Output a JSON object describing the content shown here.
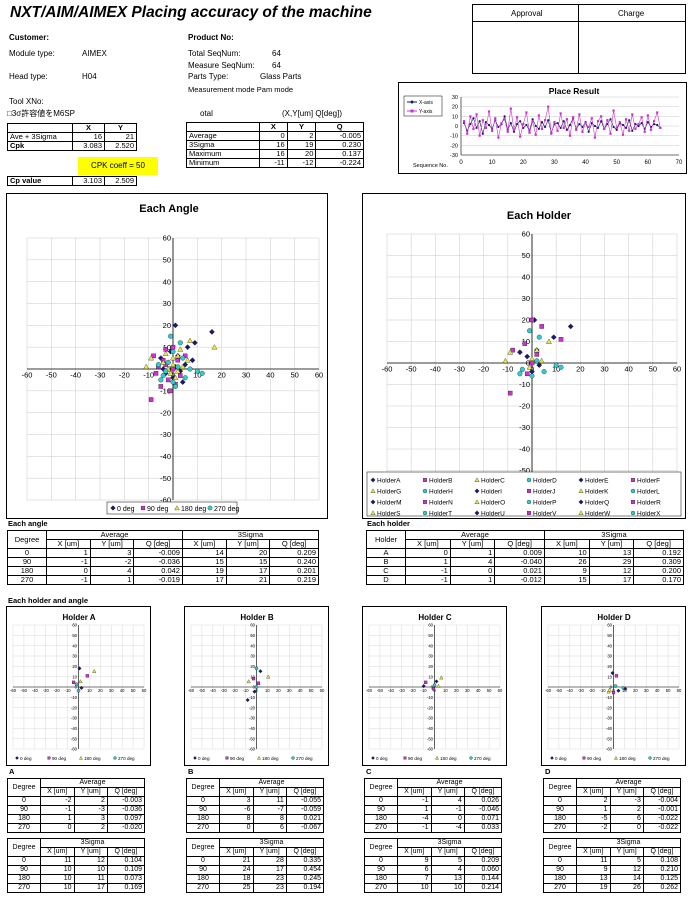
{
  "title": "NXT/AIM/AIMEX Placing accuracy of the machine",
  "approval": {
    "approval_label": "Approval",
    "charge_label": "Charge"
  },
  "info": {
    "customer_label": "Customer:",
    "product_label": "Product No:",
    "module_type_label": "Module type:",
    "module_type": "AIMEX",
    "head_type_label": "Head type:",
    "head_type": "H04",
    "total_seq_label": "Total SeqNum:",
    "total_seq": "64",
    "measure_seq_label": "Measure SeqNum:",
    "measure_seq": "64",
    "parts_type_label": "Parts Type:",
    "parts_type": "Glass Parts",
    "measure_mode": "Measurement mode Pam mode",
    "tool_label": "Tool XNo:",
    "sigma_note": "□3σ許容値をM6SP"
  },
  "cpk_table": {
    "headers": [
      "",
      "X",
      "Y"
    ],
    "rows": [
      [
        "Ave + 3Sigma",
        "16",
        "21"
      ],
      [
        "Cpk",
        "3.083",
        "2.520"
      ]
    ],
    "coeff": "CPK coeff = 50",
    "cp_label": "Cp value",
    "cp_x": "3.103",
    "cp_y": "2.509"
  },
  "total_table": {
    "label": "otal",
    "unit_label": "(X,Y[um] Q[deg])",
    "headers": [
      "",
      "X",
      "Y",
      "Q"
    ],
    "rows": [
      [
        "Average",
        "0",
        "2",
        "-0.005"
      ],
      [
        "3Sigma",
        "16",
        "19",
        "0.230"
      ],
      [
        "Maximum",
        "16",
        "20",
        "0.137"
      ],
      [
        "Minimum",
        "-11",
        "-12",
        "-0.224"
      ]
    ]
  },
  "place_result": {
    "title": "Place Result",
    "legend": [
      "X-axis",
      "Y-axis"
    ],
    "xlabel": "Sequence No.",
    "xticks": [
      "0",
      "10",
      "20",
      "30",
      "40",
      "50",
      "60",
      "70"
    ],
    "yticks": [
      "30",
      "20",
      "10",
      "0",
      "-10",
      "-20",
      "-30"
    ]
  },
  "chart_data": [
    {
      "type": "line",
      "title": "Place Result",
      "xlabel": "Sequence No.",
      "ylabel": "",
      "xlim": [
        0,
        70
      ],
      "ylim": [
        -30,
        30
      ],
      "series": [
        {
          "name": "X-axis",
          "values": [
            3,
            -5,
            2,
            8,
            -2,
            5,
            -8,
            4,
            1,
            -3,
            6,
            -1,
            2,
            10,
            -4,
            3,
            -6,
            2,
            5,
            -2,
            1,
            -5,
            7,
            0,
            -3,
            4,
            -1,
            6,
            -7,
            2,
            3,
            -2,
            5,
            -4,
            1,
            8,
            -3,
            2,
            -1,
            4,
            -6,
            3,
            0,
            -2,
            5,
            -3,
            2,
            7,
            -1,
            -4,
            3,
            1,
            -2,
            6,
            -5,
            2,
            0,
            3,
            -3,
            4,
            -1,
            2,
            1,
            -2
          ]
        },
        {
          "name": "Y-axis",
          "values": [
            5,
            -8,
            10,
            -3,
            12,
            -10,
            6,
            -2,
            15,
            -5,
            8,
            -12,
            3,
            7,
            -6,
            18,
            -4,
            9,
            -11,
            2,
            14,
            -7,
            5,
            -9,
            11,
            -3,
            6,
            20,
            -8,
            4,
            -5,
            13,
            -2,
            7,
            -10,
            9,
            -4,
            12,
            -6,
            3,
            -1,
            8,
            -12,
            5,
            10,
            -3,
            6,
            -8,
            16,
            -2,
            4,
            -9,
            7,
            -5,
            12,
            -3,
            2,
            9,
            -6,
            11,
            -4,
            5,
            14,
            -2
          ]
        }
      ]
    },
    {
      "type": "scatter",
      "title": "Each Angle",
      "xlim": [
        -60,
        60
      ],
      "ylim": [
        -60,
        60
      ],
      "legend": [
        "0 deg",
        "90 deg",
        "180 deg",
        "270 deg"
      ],
      "series": [
        {
          "name": "0 deg",
          "points": [
            [
              1,
              20
            ],
            [
              9,
              12
            ],
            [
              16,
              17
            ],
            [
              -2,
              3
            ],
            [
              3,
              -1
            ],
            [
              -5,
              5
            ],
            [
              2,
              6
            ],
            [
              0,
              -4
            ],
            [
              5,
              2
            ],
            [
              -3,
              -2
            ],
            [
              8,
              4
            ],
            [
              1,
              1
            ],
            [
              -1,
              8
            ],
            [
              4,
              -6
            ],
            [
              6,
              10
            ],
            [
              -4,
              0
            ]
          ]
        },
        {
          "name": "90 deg",
          "points": [
            [
              -9,
              -14
            ],
            [
              -3,
              9
            ],
            [
              -8,
              6
            ],
            [
              0,
              0
            ],
            [
              -2,
              -5
            ],
            [
              2,
              4
            ],
            [
              -6,
              1
            ],
            [
              -1,
              -10
            ],
            [
              3,
              -3
            ],
            [
              -4,
              4
            ],
            [
              0,
              10
            ],
            [
              -7,
              -2
            ],
            [
              1,
              -7
            ],
            [
              -3,
              2
            ],
            [
              5,
              6
            ],
            [
              -5,
              -8
            ]
          ]
        },
        {
          "name": "180 deg",
          "points": [
            [
              -11,
              1
            ],
            [
              -9,
              5
            ],
            [
              17,
              10
            ],
            [
              7,
              13
            ],
            [
              0,
              2
            ],
            [
              2,
              6
            ],
            [
              -1,
              -2
            ],
            [
              4,
              1
            ],
            [
              -4,
              3
            ],
            [
              1,
              -4
            ],
            [
              3,
              9
            ],
            [
              -2,
              0
            ],
            [
              6,
              4
            ],
            [
              0,
              5
            ],
            [
              2,
              -1
            ],
            [
              -3,
              7
            ]
          ]
        },
        {
          "name": "270 deg",
          "points": [
            [
              -1,
              15
            ],
            [
              3,
              12
            ],
            [
              -5,
              -5
            ],
            [
              10,
              -1
            ],
            [
              12,
              -2
            ],
            [
              0,
              -6
            ],
            [
              -4,
              -3
            ],
            [
              2,
              1
            ],
            [
              5,
              -4
            ],
            [
              -2,
              3
            ],
            [
              1,
              -8
            ],
            [
              -6,
              2
            ],
            [
              4,
              5
            ],
            [
              -3,
              -1
            ],
            [
              7,
              0
            ],
            [
              0,
              8
            ]
          ]
        }
      ]
    },
    {
      "type": "scatter",
      "title": "Each Holder",
      "xlim": [
        -60,
        60
      ],
      "ylim": [
        -60,
        60
      ],
      "legend": [
        "HolderA",
        "HolderB",
        "HolderC",
        "HolderD",
        "HolderE",
        "HolderF",
        "HolderG",
        "HolderH",
        "HolderI",
        "HolderJ",
        "HolderK",
        "HolderL",
        "HolderM",
        "HolderN",
        "HolderO",
        "HolderP",
        "HolderQ",
        "HolderR",
        "HolderS",
        "HolderT",
        "HolderU",
        "HolderV",
        "HolderW",
        "HolderX"
      ],
      "series": [
        {
          "name": "HolderA",
          "points": [
            [
              1,
              20
            ],
            [
              9,
              12
            ],
            [
              16,
              17
            ],
            [
              -2,
              3
            ],
            [
              3,
              -1
            ],
            [
              -5,
              5
            ],
            [
              2,
              6
            ],
            [
              0,
              -4
            ]
          ]
        },
        {
          "name": "HolderB",
          "points": [
            [
              -9,
              -14
            ],
            [
              -3,
              9
            ],
            [
              -8,
              6
            ],
            [
              0,
              0
            ],
            [
              -2,
              -5
            ],
            [
              2,
              4
            ],
            [
              12,
              11
            ],
            [
              0,
              20
            ],
            [
              4,
              17
            ]
          ]
        },
        {
          "name": "HolderC",
          "points": [
            [
              -11,
              1
            ],
            [
              -9,
              5
            ],
            [
              7,
              10
            ],
            [
              0,
              2
            ],
            [
              2,
              6
            ],
            [
              -1,
              -2
            ],
            [
              4,
              1
            ]
          ]
        },
        {
          "name": "HolderD",
          "points": [
            [
              -1,
              15
            ],
            [
              3,
              12
            ],
            [
              -5,
              -5
            ],
            [
              10,
              -1
            ],
            [
              12,
              -2
            ],
            [
              0,
              -6
            ],
            [
              -4,
              -3
            ],
            [
              2,
              1
            ],
            [
              5,
              -4
            ]
          ]
        }
      ]
    }
  ],
  "each_angle": {
    "title": "Each Angle",
    "ticks": [
      "60",
      "50",
      "40",
      "30",
      "20",
      "10",
      "0",
      "-10",
      "-20",
      "-30",
      "-40",
      "-50",
      "-60"
    ],
    "xticks": [
      "-60",
      "-50",
      "-40",
      "-30",
      "-20",
      "-10",
      "0",
      "10",
      "20",
      "30",
      "40",
      "50",
      "60"
    ],
    "legend": [
      "0 deg",
      "90 deg",
      "180 deg",
      "270 deg"
    ]
  },
  "each_holder": {
    "title": "Each Holder",
    "ticks": [
      "60",
      "50",
      "40",
      "30",
      "20",
      "10",
      "0",
      "-10",
      "-20",
      "-30",
      "-40",
      "-50",
      "-60"
    ],
    "xticks": [
      "-60",
      "-50",
      "-40",
      "-30",
      "-20",
      "-10",
      "0",
      "10",
      "20",
      "30",
      "40",
      "50",
      "60"
    ],
    "legend": [
      "HolderA",
      "HolderB",
      "HolderC",
      "HolderD",
      "HolderE",
      "HolderF",
      "HolderG",
      "HolderH",
      "HolderI",
      "HolderJ",
      "HolderK",
      "HolderL",
      "HolderM",
      "HolderN",
      "HolderO",
      "HolderP",
      "HolderQ",
      "HolderR",
      "HolderS",
      "HolderT",
      "HolderU",
      "HolderV",
      "HolderW",
      "HolderX"
    ]
  },
  "each_angle_table": {
    "label": "Each angle",
    "group_avg": "Average",
    "group_sigma": "3Sigma",
    "headers": [
      "Degree",
      "X [um]",
      "Y [um]",
      "Q [deg]",
      "X [um]",
      "Y [um]",
      "Q [deg]"
    ],
    "rows": [
      [
        "0",
        "1",
        "3",
        "-0.009",
        "14",
        "20",
        "0.209"
      ],
      [
        "90",
        "-1",
        "-2",
        "-0.036",
        "15",
        "15",
        "0.240"
      ],
      [
        "180",
        "0",
        "4",
        "0.042",
        "19",
        "17",
        "0.201"
      ],
      [
        "270",
        "-1",
        "1",
        "-0.019",
        "17",
        "21",
        "0.219"
      ]
    ]
  },
  "each_holder_table": {
    "label": "Each holder",
    "group_avg": "Average",
    "group_sigma": "3Sigma",
    "headers": [
      "Holder",
      "X [um]",
      "Y [um]",
      "Q [deg]",
      "X [um]",
      "Y [um]",
      "Q [deg]"
    ],
    "rows": [
      [
        "A",
        "0",
        "1",
        "0.009",
        "10",
        "13",
        "0.192"
      ],
      [
        "B",
        "1",
        "4",
        "-0.040",
        "26",
        "29",
        "0.309"
      ],
      [
        "C",
        "-1",
        "0",
        "0.021",
        "9",
        "12",
        "0.200"
      ],
      [
        "D",
        "-1",
        "1",
        "-0.012",
        "15",
        "17",
        "0.170"
      ]
    ]
  },
  "holder_angle_label": "Each holder and angle",
  "mini_charts": [
    {
      "title": "Holder A",
      "letter": "A"
    },
    {
      "title": "Holder B",
      "letter": "B"
    },
    {
      "title": "Holder C",
      "letter": "C"
    },
    {
      "title": "Holder D",
      "letter": "D"
    }
  ],
  "mini_ticks": [
    "60",
    "50",
    "40",
    "30",
    "20",
    "10",
    "0",
    "-10",
    "-20",
    "-30",
    "-40",
    "-50",
    "-60"
  ],
  "mini_xticks": [
    "-60",
    "-50",
    "-40",
    "-30",
    "-20",
    "-10",
    "0",
    "10",
    "20",
    "30",
    "40",
    "50",
    "60"
  ],
  "mini_legend": [
    "0 deg",
    "90 deg",
    "180 deg",
    "270 deg"
  ],
  "holder_tables": [
    {
      "letter": "A",
      "avg": [
        [
          "0",
          "-2",
          "2",
          "-0.003"
        ],
        [
          "90",
          "-1",
          "-3",
          "-0.036"
        ],
        [
          "180",
          "1",
          "3",
          "0.097"
        ],
        [
          "270",
          "0",
          "2",
          "-0.020"
        ]
      ],
      "sig": [
        [
          "0",
          "11",
          "12",
          "0.104"
        ],
        [
          "90",
          "10",
          "10",
          "0.109"
        ],
        [
          "180",
          "10",
          "11",
          "0.073"
        ],
        [
          "270",
          "10",
          "17",
          "0.169"
        ]
      ]
    },
    {
      "letter": "B",
      "avg": [
        [
          "0",
          "3",
          "11",
          "-0.055"
        ],
        [
          "90",
          "-6",
          "-7",
          "-0.059"
        ],
        [
          "180",
          "8",
          "8",
          "0.021"
        ],
        [
          "270",
          "0",
          "6",
          "-0.067"
        ]
      ],
      "sig": [
        [
          "0",
          "21",
          "28",
          "0.335"
        ],
        [
          "90",
          "24",
          "17",
          "0.454"
        ],
        [
          "180",
          "18",
          "23",
          "0.245"
        ],
        [
          "270",
          "25",
          "23",
          "0.194"
        ]
      ]
    },
    {
      "letter": "C",
      "avg": [
        [
          "0",
          "-1",
          "4",
          "0.026"
        ],
        [
          "90",
          "1",
          "-1",
          "-0.046"
        ],
        [
          "180",
          "-4",
          "0",
          "0.071"
        ],
        [
          "270",
          "-1",
          "-4",
          "0.033"
        ]
      ],
      "sig": [
        [
          "0",
          "9",
          "5",
          "0.209"
        ],
        [
          "90",
          "6",
          "4",
          "0.060"
        ],
        [
          "180",
          "7",
          "13",
          "0.144"
        ],
        [
          "270",
          "10",
          "10",
          "0.214"
        ]
      ]
    },
    {
      "letter": "D",
      "avg": [
        [
          "0",
          "2",
          "-3",
          "-0.004"
        ],
        [
          "90",
          "1",
          "2",
          "-0.001"
        ],
        [
          "180",
          "-5",
          "6",
          "-0.022"
        ],
        [
          "270",
          "-2",
          "0",
          "-0.022"
        ]
      ],
      "sig": [
        [
          "0",
          "11",
          "5",
          "0.108"
        ],
        [
          "90",
          "9",
          "12",
          "0.210"
        ],
        [
          "180",
          "13",
          "14",
          "0.125"
        ],
        [
          "270",
          "19",
          "26",
          "0.262"
        ]
      ]
    }
  ],
  "holder_table_headers": {
    "degree": "Degree",
    "avg": "Average",
    "sigma": "3Sigma",
    "cols": [
      "X [um]",
      "Y [um]",
      "Q [deg]"
    ]
  },
  "colors": {
    "deg0": "#1a1a6e",
    "deg90": "#cc33cc",
    "deg180": "#e8e84a",
    "deg270": "#33cccc",
    "yellow": "#ffff00"
  }
}
